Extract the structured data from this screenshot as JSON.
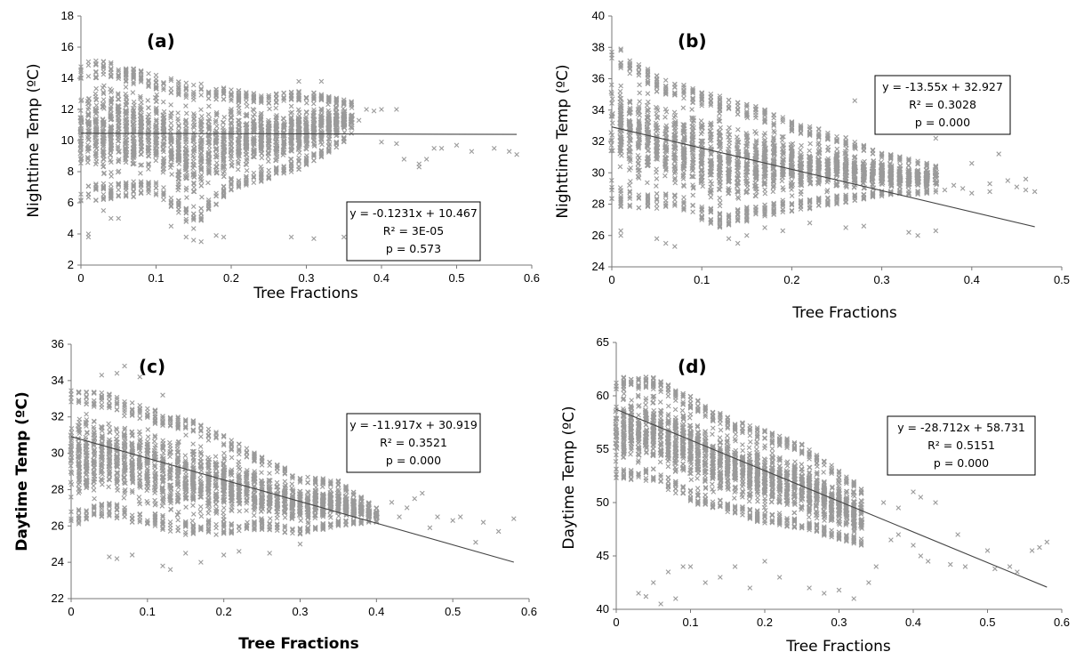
{
  "chart_data": [
    {
      "type": "scatter",
      "panel_label": "(a)",
      "xlabel": "Tree Fractions",
      "ylabel": "Nighttime Temp (ºC)",
      "xlim": [
        0,
        0.6
      ],
      "ylim": [
        2,
        18
      ],
      "x_ticks": [
        "0",
        "0.1",
        "0.2",
        "0.3",
        "0.4",
        "0.5",
        "0.6"
      ],
      "y_ticks": [
        "2",
        "4",
        "6",
        "8",
        "10",
        "12",
        "14",
        "16",
        "18"
      ],
      "marker_color": "#9a9a9a",
      "trendline": {
        "slope": -0.1231,
        "intercept": 10.467,
        "x_range": [
          0,
          0.58
        ]
      },
      "annotation": [
        "y = -0.1231x + 10.467",
        "R² = 3E-05",
        "p = 0.573"
      ],
      "band": {
        "upper": [
          [
            0,
            15
          ],
          [
            0.03,
            15.2
          ],
          [
            0.1,
            14.2
          ],
          [
            0.2,
            13.3
          ],
          [
            0.25,
            13
          ],
          [
            0.3,
            13.2
          ],
          [
            0.36,
            12.5
          ]
        ],
        "lower": [
          [
            0,
            6
          ],
          [
            0.03,
            6.2
          ],
          [
            0.1,
            6.5
          ],
          [
            0.15,
            4.2
          ],
          [
            0.2,
            6.8
          ],
          [
            0.25,
            7.5
          ],
          [
            0.3,
            8.3
          ],
          [
            0.36,
            10.2
          ]
        ],
        "x_end": 0.36,
        "n": 1900
      },
      "outliers": [
        [
          0.01,
          4
        ],
        [
          0.01,
          3.8
        ],
        [
          0.03,
          5.5
        ],
        [
          0.04,
          5
        ],
        [
          0.05,
          5
        ],
        [
          0.12,
          4.5
        ],
        [
          0.14,
          3.8
        ],
        [
          0.15,
          3.6
        ],
        [
          0.16,
          3.5
        ],
        [
          0.18,
          3.9
        ],
        [
          0.19,
          3.8
        ],
        [
          0.28,
          3.8
        ],
        [
          0.31,
          3.7
        ],
        [
          0.35,
          3.8
        ],
        [
          0.36,
          3.8
        ],
        [
          0.38,
          12
        ],
        [
          0.39,
          11.9
        ],
        [
          0.4,
          12
        ],
        [
          0.4,
          9.9
        ],
        [
          0.42,
          12
        ],
        [
          0.42,
          9.8
        ],
        [
          0.43,
          8.8
        ],
        [
          0.45,
          8.5
        ],
        [
          0.45,
          8.3
        ],
        [
          0.46,
          8.8
        ],
        [
          0.47,
          9.5
        ],
        [
          0.48,
          9.5
        ],
        [
          0.5,
          9.7
        ],
        [
          0.52,
          9.3
        ],
        [
          0.55,
          9.5
        ],
        [
          0.57,
          9.3
        ],
        [
          0.58,
          9.1
        ],
        [
          0.34,
          12.1
        ],
        [
          0.35,
          11.6
        ],
        [
          0.37,
          11.3
        ],
        [
          0.32,
          13.8
        ],
        [
          0.29,
          13.8
        ]
      ]
    },
    {
      "type": "scatter",
      "panel_label": "(b)",
      "xlabel": "Tree Fractions",
      "ylabel": "Nighttime Temp (ºC)",
      "xlim": [
        0,
        0.5
      ],
      "ylim": [
        24,
        40
      ],
      "x_ticks": [
        "0",
        "0.1",
        "0.2",
        "0.3",
        "0.4",
        "0.5"
      ],
      "y_ticks": [
        "24",
        "26",
        "28",
        "30",
        "32",
        "34",
        "36",
        "38",
        "40"
      ],
      "marker_color": "#9a9a9a",
      "trendline": {
        "slope": -13.55,
        "intercept": 32.927,
        "x_range": [
          0,
          0.47
        ]
      },
      "annotation": [
        "y = -13.55x + 32.927",
        "R² = 0.3028",
        "p = 0.000"
      ],
      "band": {
        "upper": [
          [
            0,
            38.3
          ],
          [
            0.02,
            37.5
          ],
          [
            0.05,
            36.2
          ],
          [
            0.1,
            35.2
          ],
          [
            0.15,
            34.5
          ],
          [
            0.2,
            33.3
          ],
          [
            0.25,
            32.5
          ],
          [
            0.3,
            31.3
          ],
          [
            0.36,
            30.5
          ]
        ],
        "lower": [
          [
            0,
            28
          ],
          [
            0.03,
            27.5
          ],
          [
            0.07,
            27.8
          ],
          [
            0.12,
            26.5
          ],
          [
            0.18,
            27.3
          ],
          [
            0.25,
            28
          ],
          [
            0.3,
            28.5
          ],
          [
            0.36,
            28.7
          ]
        ],
        "x_end": 0.36,
        "n": 1900
      },
      "outliers": [
        [
          0.01,
          26.3
        ],
        [
          0.01,
          26
        ],
        [
          0.05,
          25.8
        ],
        [
          0.06,
          25.5
        ],
        [
          0.07,
          25.3
        ],
        [
          0.1,
          27
        ],
        [
          0.13,
          25.8
        ],
        [
          0.14,
          25.5
        ],
        [
          0.15,
          26
        ],
        [
          0.17,
          26.5
        ],
        [
          0.19,
          26.3
        ],
        [
          0.22,
          26.8
        ],
        [
          0.26,
          26.5
        ],
        [
          0.28,
          26.6
        ],
        [
          0.33,
          26.2
        ],
        [
          0.34,
          26
        ],
        [
          0.36,
          26.3
        ],
        [
          0.37,
          28.9
        ],
        [
          0.38,
          29.2
        ],
        [
          0.39,
          29
        ],
        [
          0.4,
          28.7
        ],
        [
          0.4,
          30.6
        ],
        [
          0.42,
          29.3
        ],
        [
          0.42,
          28.8
        ],
        [
          0.43,
          31.2
        ],
        [
          0.44,
          29.5
        ],
        [
          0.45,
          29.1
        ],
        [
          0.46,
          29.6
        ],
        [
          0.46,
          28.9
        ],
        [
          0.47,
          28.8
        ],
        [
          0.32,
          34.5
        ],
        [
          0.3,
          34
        ],
        [
          0.27,
          34.6
        ],
        [
          0.33,
          33.3
        ],
        [
          0.34,
          33
        ],
        [
          0.36,
          32.2
        ]
      ]
    },
    {
      "type": "scatter",
      "panel_label": "(c)",
      "xlabel": "Tree Fractions",
      "ylabel": "Daytime Temp (ºC)",
      "xlim": [
        0,
        0.6
      ],
      "ylim": [
        22,
        36
      ],
      "x_ticks": [
        "0",
        "0.1",
        "0.2",
        "0.3",
        "0.4",
        "0.5",
        "0.6"
      ],
      "y_ticks": [
        "22",
        "24",
        "26",
        "28",
        "30",
        "32",
        "34",
        "36"
      ],
      "marker_color": "#9a9a9a",
      "trendline": {
        "slope": -11.917,
        "intercept": 30.919,
        "x_range": [
          0,
          0.58
        ]
      },
      "annotation": [
        "y = -11.917x + 30.919",
        "R² = 0.3521",
        "p = 0.000"
      ],
      "band": {
        "upper": [
          [
            0,
            33.5
          ],
          [
            0.05,
            33.3
          ],
          [
            0.1,
            32.5
          ],
          [
            0.15,
            32
          ],
          [
            0.2,
            31
          ],
          [
            0.25,
            29.8
          ],
          [
            0.3,
            28.8
          ],
          [
            0.35,
            28.5
          ],
          [
            0.4,
            27
          ]
        ],
        "lower": [
          [
            0,
            26
          ],
          [
            0.05,
            26.5
          ],
          [
            0.1,
            26
          ],
          [
            0.15,
            25.5
          ],
          [
            0.2,
            25.5
          ],
          [
            0.25,
            25.8
          ],
          [
            0.3,
            25.5
          ],
          [
            0.35,
            26
          ],
          [
            0.4,
            26.2
          ]
        ],
        "x_end": 0.4,
        "n": 1900
      },
      "outliers": [
        [
          0.05,
          24.3
        ],
        [
          0.06,
          24.2
        ],
        [
          0.08,
          24.4
        ],
        [
          0.12,
          23.8
        ],
        [
          0.13,
          23.6
        ],
        [
          0.15,
          24.5
        ],
        [
          0.17,
          24
        ],
        [
          0.2,
          24.4
        ],
        [
          0.22,
          24.6
        ],
        [
          0.26,
          24.5
        ],
        [
          0.3,
          25
        ],
        [
          0.07,
          34.8
        ],
        [
          0.06,
          34.4
        ],
        [
          0.09,
          34.2
        ],
        [
          0.04,
          34.3
        ],
        [
          0.12,
          33.2
        ],
        [
          0.42,
          27.3
        ],
        [
          0.43,
          26.5
        ],
        [
          0.44,
          27
        ],
        [
          0.45,
          27.5
        ],
        [
          0.46,
          27.8
        ],
        [
          0.47,
          25.9
        ],
        [
          0.48,
          26.5
        ],
        [
          0.5,
          26.3
        ],
        [
          0.51,
          26.5
        ],
        [
          0.53,
          25.1
        ],
        [
          0.54,
          26.2
        ],
        [
          0.56,
          25.7
        ],
        [
          0.58,
          26.4
        ],
        [
          0.32,
          27.9
        ],
        [
          0.34,
          28
        ]
      ]
    },
    {
      "type": "scatter",
      "panel_label": "(d)",
      "xlabel": "Tree Fractions",
      "ylabel": "Daytime Temp (ºC)",
      "xlim": [
        0,
        0.6
      ],
      "ylim": [
        40,
        65
      ],
      "x_ticks": [
        "0",
        "0.1",
        "0.2",
        "0.3",
        "0.4",
        "0.5",
        "0.6"
      ],
      "y_ticks": [
        "40",
        "45",
        "50",
        "55",
        "60",
        "65"
      ],
      "marker_color": "#9a9a9a",
      "trendline": {
        "slope": -28.712,
        "intercept": 58.731,
        "x_range": [
          0,
          0.58
        ]
      },
      "annotation": [
        "y = -28.712x + 58.731",
        "R² = 0.5151",
        "p = 0.000"
      ],
      "band": {
        "upper": [
          [
            0,
            61.8
          ],
          [
            0.05,
            61.8
          ],
          [
            0.1,
            60
          ],
          [
            0.15,
            58
          ],
          [
            0.2,
            56.8
          ],
          [
            0.25,
            55.5
          ],
          [
            0.3,
            53
          ],
          [
            0.33,
            51.5
          ]
        ],
        "lower": [
          [
            0,
            52
          ],
          [
            0.05,
            52
          ],
          [
            0.1,
            50
          ],
          [
            0.15,
            49
          ],
          [
            0.2,
            48
          ],
          [
            0.25,
            47.5
          ],
          [
            0.3,
            46.5
          ],
          [
            0.33,
            46
          ]
        ],
        "x_end": 0.33,
        "n": 1800
      },
      "outliers": [
        [
          0.03,
          41.5
        ],
        [
          0.04,
          41.2
        ],
        [
          0.05,
          42.5
        ],
        [
          0.06,
          40.5
        ],
        [
          0.07,
          43.5
        ],
        [
          0.08,
          41
        ],
        [
          0.09,
          44
        ],
        [
          0.1,
          44
        ],
        [
          0.12,
          42.5
        ],
        [
          0.14,
          43
        ],
        [
          0.16,
          44
        ],
        [
          0.18,
          42
        ],
        [
          0.2,
          44.5
        ],
        [
          0.22,
          43
        ],
        [
          0.26,
          42
        ],
        [
          0.28,
          41.5
        ],
        [
          0.3,
          41.8
        ],
        [
          0.32,
          41
        ],
        [
          0.34,
          42.5
        ],
        [
          0.35,
          44
        ],
        [
          0.37,
          46.5
        ],
        [
          0.38,
          47
        ],
        [
          0.4,
          46
        ],
        [
          0.41,
          45
        ],
        [
          0.42,
          44.5
        ],
        [
          0.45,
          44.2
        ],
        [
          0.46,
          47
        ],
        [
          0.47,
          44
        ],
        [
          0.5,
          45.5
        ],
        [
          0.51,
          43.8
        ],
        [
          0.53,
          44
        ],
        [
          0.54,
          43.5
        ],
        [
          0.56,
          45.5
        ],
        [
          0.57,
          45.8
        ],
        [
          0.58,
          46.3
        ],
        [
          0.36,
          50
        ],
        [
          0.38,
          49.5
        ],
        [
          0.4,
          51
        ],
        [
          0.41,
          50.5
        ],
        [
          0.43,
          50
        ]
      ]
    }
  ]
}
